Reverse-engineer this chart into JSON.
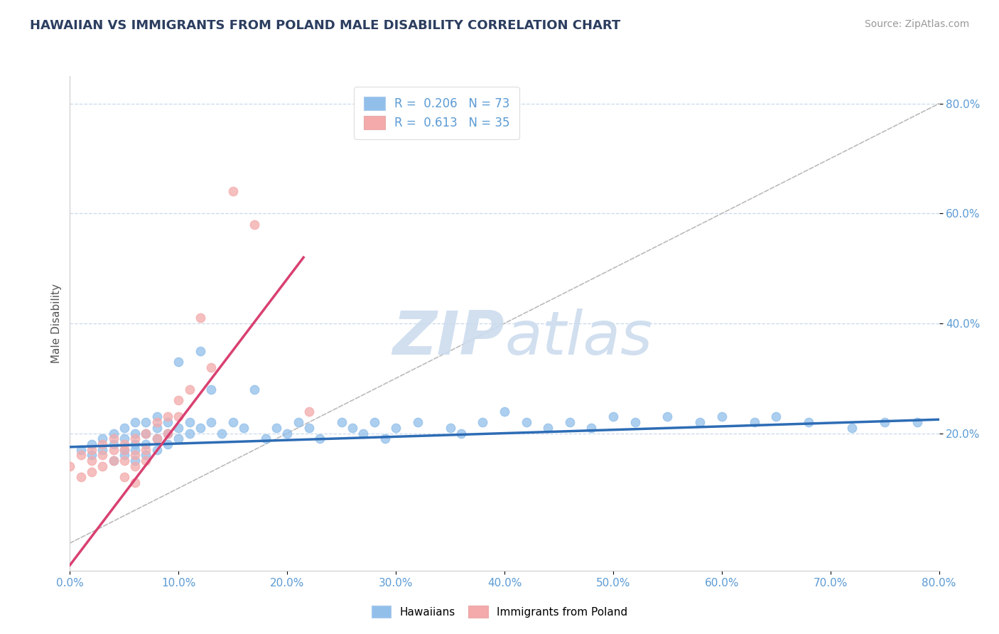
{
  "title": "HAWAIIAN VS IMMIGRANTS FROM POLAND MALE DISABILITY CORRELATION CHART",
  "source_text": "Source: ZipAtlas.com",
  "ylabel": "Male Disability",
  "xmin": 0.0,
  "xmax": 0.8,
  "ymin": -0.05,
  "ymax": 0.85,
  "xtick_labels": [
    "0.0%",
    "10.0%",
    "20.0%",
    "30.0%",
    "40.0%",
    "50.0%",
    "60.0%",
    "70.0%",
    "80.0%"
  ],
  "xtick_vals": [
    0.0,
    0.1,
    0.2,
    0.3,
    0.4,
    0.5,
    0.6,
    0.7,
    0.8
  ],
  "ytick_labels": [
    "20.0%",
    "40.0%",
    "60.0%",
    "80.0%"
  ],
  "ytick_vals": [
    0.2,
    0.4,
    0.6,
    0.8
  ],
  "legend_r1": "R = ",
  "legend_v1": "0.206",
  "legend_n1": "  N = ",
  "legend_nv1": "73",
  "legend_r2": "R = ",
  "legend_v2": "0.613",
  "legend_n2": "  N = ",
  "legend_nv2": "35",
  "series1_color": "#92BFEA",
  "series2_color": "#F4AAAA",
  "series1_edge": "#6699CC",
  "series2_edge": "#E08888",
  "line1_color": "#2D6CB5",
  "line2_color": "#D94070",
  "diag_color": "#BBBBBB",
  "watermark_color": "#CCDCEE",
  "title_color": "#2C3E60",
  "axis_color": "#5B9BD5",
  "grid_color": "#C8D8ED",
  "hawaiians_x": [
    0.01,
    0.02,
    0.02,
    0.03,
    0.03,
    0.04,
    0.04,
    0.04,
    0.05,
    0.05,
    0.05,
    0.05,
    0.06,
    0.06,
    0.06,
    0.06,
    0.06,
    0.07,
    0.07,
    0.07,
    0.07,
    0.08,
    0.08,
    0.08,
    0.08,
    0.09,
    0.09,
    0.09,
    0.1,
    0.1,
    0.1,
    0.11,
    0.11,
    0.12,
    0.12,
    0.13,
    0.13,
    0.14,
    0.15,
    0.16,
    0.17,
    0.18,
    0.19,
    0.2,
    0.21,
    0.22,
    0.23,
    0.25,
    0.26,
    0.27,
    0.28,
    0.29,
    0.3,
    0.32,
    0.35,
    0.36,
    0.38,
    0.4,
    0.42,
    0.44,
    0.46,
    0.48,
    0.5,
    0.52,
    0.55,
    0.58,
    0.6,
    0.63,
    0.65,
    0.68,
    0.72,
    0.75,
    0.78
  ],
  "hawaiians_y": [
    0.17,
    0.16,
    0.18,
    0.17,
    0.19,
    0.15,
    0.18,
    0.2,
    0.16,
    0.17,
    0.19,
    0.21,
    0.15,
    0.17,
    0.18,
    0.2,
    0.22,
    0.16,
    0.18,
    0.2,
    0.22,
    0.17,
    0.19,
    0.21,
    0.23,
    0.18,
    0.2,
    0.22,
    0.19,
    0.21,
    0.33,
    0.2,
    0.22,
    0.21,
    0.35,
    0.28,
    0.22,
    0.2,
    0.22,
    0.21,
    0.28,
    0.19,
    0.21,
    0.2,
    0.22,
    0.21,
    0.19,
    0.22,
    0.21,
    0.2,
    0.22,
    0.19,
    0.21,
    0.22,
    0.21,
    0.2,
    0.22,
    0.24,
    0.22,
    0.21,
    0.22,
    0.21,
    0.23,
    0.22,
    0.23,
    0.22,
    0.23,
    0.22,
    0.23,
    0.22,
    0.21,
    0.22,
    0.22
  ],
  "poland_x": [
    0.0,
    0.01,
    0.01,
    0.02,
    0.02,
    0.02,
    0.03,
    0.03,
    0.03,
    0.04,
    0.04,
    0.04,
    0.05,
    0.05,
    0.05,
    0.05,
    0.06,
    0.06,
    0.06,
    0.06,
    0.07,
    0.07,
    0.07,
    0.08,
    0.08,
    0.09,
    0.09,
    0.1,
    0.1,
    0.11,
    0.12,
    0.13,
    0.15,
    0.17,
    0.22
  ],
  "poland_y": [
    0.14,
    0.16,
    0.12,
    0.15,
    0.17,
    0.13,
    0.16,
    0.18,
    0.14,
    0.17,
    0.19,
    0.15,
    0.18,
    0.15,
    0.17,
    0.12,
    0.19,
    0.16,
    0.14,
    0.11,
    0.2,
    0.17,
    0.15,
    0.22,
    0.19,
    0.23,
    0.2,
    0.26,
    0.23,
    0.28,
    0.41,
    0.32,
    0.64,
    0.58,
    0.24
  ],
  "line1_x0": 0.0,
  "line1_x1": 0.8,
  "line1_y0": 0.175,
  "line1_y1": 0.225,
  "line2_x0": 0.0,
  "line2_x1": 0.215,
  "line2_y0": -0.04,
  "line2_y1": 0.52
}
